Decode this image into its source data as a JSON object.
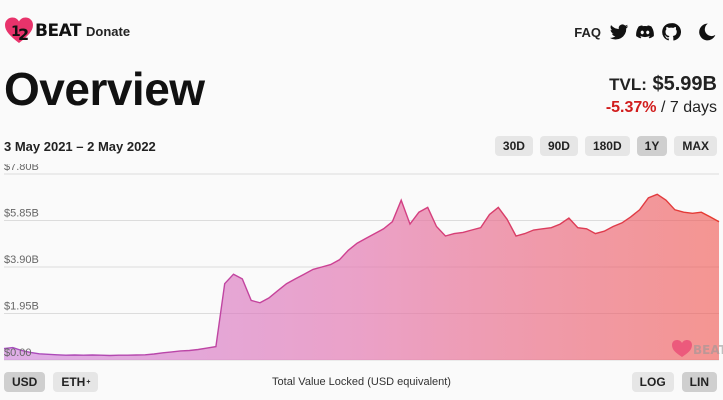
{
  "header": {
    "logo_text": "BEAT",
    "nav_donate": "Donate",
    "faq": "FAQ",
    "icons": [
      "twitter-icon",
      "discord-icon",
      "github-icon",
      "moon-icon"
    ]
  },
  "overview": {
    "title": "Overview",
    "tvl_label": "TVL:",
    "tvl_value": "$5.99B",
    "change": "-5.37%",
    "change_period": "/ 7 days",
    "date_range": "3 May 2021 – 2 May 2022"
  },
  "range_buttons": [
    "30D",
    "90D",
    "180D",
    "1Y",
    "MAX"
  ],
  "active_range": "1Y",
  "currency_buttons": [
    "USD",
    "ETH"
  ],
  "eth_sup": "+",
  "scale_buttons": [
    "LOG",
    "LIN"
  ],
  "caption": "Total Value Locked (USD equivalent)",
  "colors": {
    "negative": "#d11c1c",
    "gradient_start": "#c971d8",
    "gradient_end": "#f0524c",
    "logo_heart": "#e8336b"
  },
  "chart_data": {
    "type": "area",
    "ylabel": "",
    "xlabel": "",
    "yticks": [
      "$0.00",
      "$1.95B",
      "$3.90B",
      "$5.85B",
      "$7.80B"
    ],
    "ytick_values": [
      0,
      1.95,
      3.9,
      5.85,
      7.8
    ],
    "ylim": [
      0,
      7.8
    ],
    "x_range": [
      "3 May 2021",
      "2 May 2022"
    ],
    "values_billions": [
      0.48,
      0.52,
      0.4,
      0.32,
      0.26,
      0.24,
      0.22,
      0.2,
      0.21,
      0.2,
      0.21,
      0.2,
      0.19,
      0.2,
      0.2,
      0.21,
      0.22,
      0.25,
      0.3,
      0.34,
      0.38,
      0.4,
      0.44,
      0.5,
      0.56,
      3.2,
      3.6,
      3.4,
      2.5,
      2.4,
      2.6,
      2.9,
      3.2,
      3.4,
      3.6,
      3.8,
      3.9,
      4.0,
      4.2,
      4.6,
      4.9,
      5.1,
      5.3,
      5.5,
      5.8,
      6.7,
      5.7,
      6.2,
      6.4,
      5.6,
      5.2,
      5.3,
      5.35,
      5.45,
      5.55,
      6.1,
      6.4,
      5.9,
      5.2,
      5.3,
      5.45,
      5.5,
      5.55,
      5.7,
      5.95,
      5.55,
      5.5,
      5.3,
      5.4,
      5.6,
      5.75,
      6.0,
      6.3,
      6.8,
      6.95,
      6.7,
      6.3,
      6.2,
      6.15,
      6.2,
      6.0,
      5.8
    ],
    "watermark": "BEAT",
    "grid": true
  }
}
